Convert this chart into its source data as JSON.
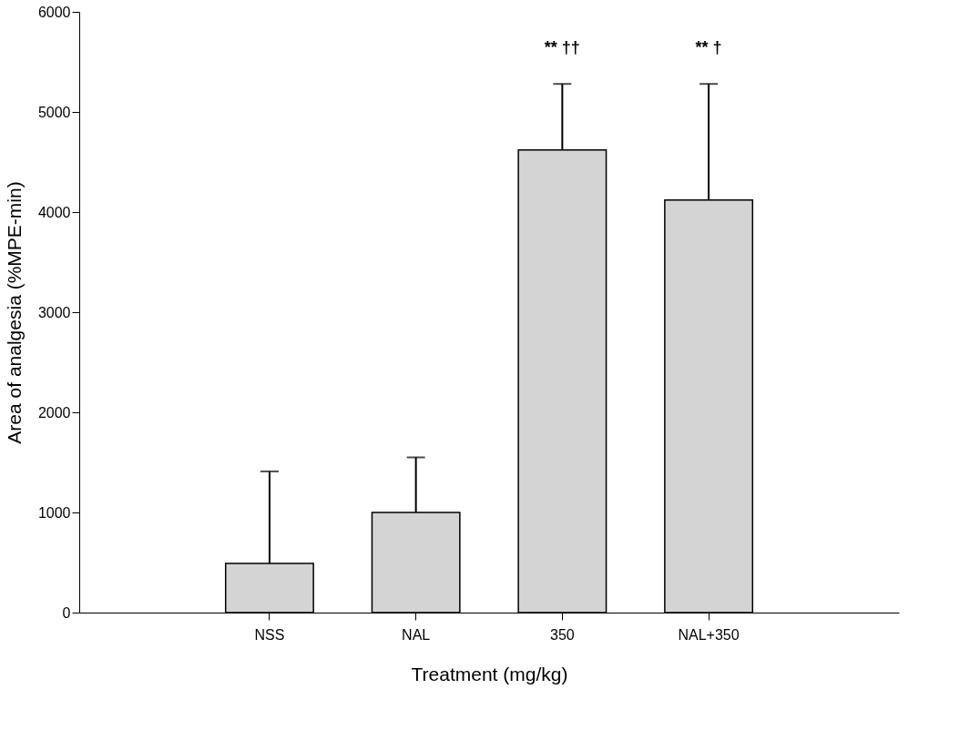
{
  "chart_data": {
    "type": "bar",
    "xlabel": "Treatment (mg/kg)",
    "ylabel": "Area of analgesia (%MPE-min)",
    "categories": [
      "NSS",
      "NAL",
      "350",
      "NAL+350"
    ],
    "values": [
      490,
      1000,
      4620,
      4120
    ],
    "errors": [
      [
        490,
        1410
      ],
      [
        1000,
        1550
      ],
      [
        4620,
        5280
      ],
      [
        4120,
        5280
      ]
    ],
    "color": "#d4d4d4",
    "ylim": [
      0,
      6000
    ],
    "yticks": [
      0,
      1000,
      2000,
      3000,
      4000,
      5000,
      6000
    ],
    "grid": false,
    "annotations": [
      "** ††",
      "** †"
    ]
  }
}
